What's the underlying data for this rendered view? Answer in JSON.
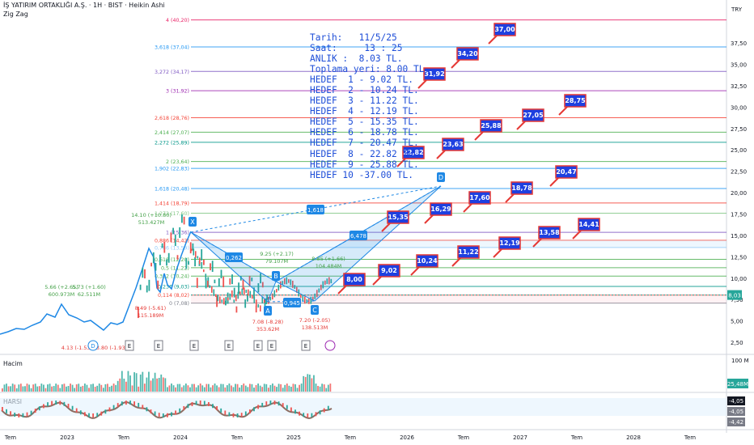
{
  "header": {
    "title": "İŞ YATIRIM ORTAKLIĞI A.Ş. · 1H · BIST · Heikin Ashi",
    "indicator": "Zig Zag"
  },
  "info_lines": [
    "Tarih:   11/5/25",
    "Saat:     13 : 25",
    "ANLIK :  8.03 TL.",
    "Toplama yeri: 8.00 TL.",
    "HEDEF  1 - 9.02 TL.",
    "HEDEF  2 - 10.24 TL.",
    "HEDEF  3 - 11.22 TL.",
    "HEDEF  4 - 12.19 TL.",
    "HEDEF  5 - 15.35 TL.",
    "HEDEF  6 - 18.78 TL.",
    "HEDEF  7 - 20.47 TL.",
    "HEDEF  8 - 22.82 TL.",
    "HEDEF  9 - 25.88 TL.",
    "HEDEF 10 -37.00 TL."
  ],
  "chart_data": {
    "type": "line",
    "currency": "TRY",
    "y_range": [
      2.3,
      41.8
    ],
    "y_ticks": [
      "37,50",
      "35,00",
      "32,50",
      "30,00",
      "27,50",
      "25,00",
      "22,50",
      "20,00",
      "17,50",
      "15,00",
      "12,50",
      "10,00",
      "7,50",
      "5,00",
      "2,50"
    ],
    "y_tick_values": [
      37.5,
      35,
      32.5,
      30,
      27.5,
      25,
      22.5,
      20,
      17.5,
      15,
      12.5,
      10,
      7.5,
      5,
      2.5
    ],
    "last_price_label": "8,03",
    "last_price": 8.03,
    "x_ticks": [
      "Tem",
      "2023",
      "Tem",
      "2024",
      "Tem",
      "2025",
      "Tem",
      "2026",
      "Tem",
      "2027",
      "Tem",
      "2028",
      "Tem"
    ],
    "fib_levels": [
      {
        "label": "4 (40,20)",
        "value": 40.2,
        "color": "#e91e63"
      },
      {
        "label": "3,618 (37,04)",
        "value": 37.04,
        "color": "#2196f3"
      },
      {
        "label": "3,272 (34,17)",
        "value": 34.17,
        "color": "#7e57c2"
      },
      {
        "label": "3 (31,92)",
        "value": 31.92,
        "color": "#9c27b0"
      },
      {
        "label": "2,618 (28,76)",
        "value": 28.76,
        "color": "#f44336"
      },
      {
        "label": "2,414 (27,07)",
        "value": 27.07,
        "color": "#4caf50"
      },
      {
        "label": "2,272 (25,89)",
        "value": 25.89,
        "color": "#009688"
      },
      {
        "label": "2 (23,64)",
        "value": 23.64,
        "color": "#4caf50"
      },
      {
        "label": "1,902 (22,83)",
        "value": 22.83,
        "color": "#2196f3"
      },
      {
        "label": "1,618 (20,48)",
        "value": 20.48,
        "color": "#2196f3"
      },
      {
        "label": "1,414 (18,79)",
        "value": 18.79,
        "color": "#f44336"
      },
      {
        "label": "1,272 (17,60)",
        "value": 17.6,
        "color": "#81c784"
      },
      {
        "label": "1 (15,36)",
        "value": 15.36,
        "color": "#7e57c2"
      },
      {
        "label": "0,886 (14,42)",
        "value": 14.42,
        "color": "#f44336"
      },
      {
        "label": "0,786 (13,59)",
        "value": 13.59,
        "color": "#90caf9"
      },
      {
        "label": "0,618 (12,20)",
        "value": 12.2,
        "color": "#4caf50"
      },
      {
        "label": "0,5 (11,22)",
        "value": 11.22,
        "color": "#4caf50"
      },
      {
        "label": "0,382 (10,24)",
        "value": 10.24,
        "color": "#4caf50"
      },
      {
        "label": "0,236 (9,03)",
        "value": 9.03,
        "color": "#009688"
      },
      {
        "label": "0,114 (8,02)",
        "value": 8.02,
        "color": "#f44336"
      },
      {
        "label": "0 (7,08)",
        "value": 7.08,
        "color": "#787b86"
      }
    ],
    "zigzag_labels": [
      {
        "text": "5.66 (+2.65)",
        "sub": "600.973M",
        "color": "#43a047"
      },
      {
        "text": "5.73 (+1.60)",
        "sub": "62.511M",
        "color": "#43a047"
      },
      {
        "text": "14.10 (+10.80)",
        "sub": "513.427M",
        "color": "#43a047"
      },
      {
        "text": "9.25 (+2.17)",
        "sub": "79.107M",
        "color": "#43a047"
      },
      {
        "text": "8.85 (+1.66)",
        "sub": "104.484M",
        "color": "#43a047"
      },
      {
        "text": "4.13 (-1.53)",
        "sub": "",
        "color": "#e53935"
      },
      {
        "text": "3.80 (-1.93)",
        "sub": "",
        "color": "#e53935"
      },
      {
        "text": "8.49 (-5.61)",
        "sub": "115.189M",
        "color": "#e53935"
      },
      {
        "text": "7.08 (-8.28)",
        "sub": "353.62M",
        "color": "#e53935"
      },
      {
        "text": "7.20 (-2.05)",
        "sub": "138.513M",
        "color": "#e53935"
      }
    ],
    "pattern_points": [
      "X",
      "A",
      "B",
      "C",
      "D"
    ],
    "pattern_ratios": [
      "0,262",
      "0,945",
      "6,478",
      "1,618"
    ],
    "targets": [
      "8,00",
      "9,02",
      "10,24",
      "11,22",
      "12,19",
      "13,58",
      "14,41",
      "15,35",
      "16,29",
      "17,60",
      "18,78",
      "20,47",
      "22,82",
      "23,63",
      "25,88",
      "27,05",
      "28,75",
      "31,92",
      "34,20",
      "37,00"
    ],
    "earnings_markers": [
      "E",
      "E",
      "E",
      "E",
      "E",
      "E",
      "E"
    ],
    "dividend_marker": "D",
    "volume_panel": {
      "label": "Hacim",
      "scale": "100 M",
      "value": "25,48M"
    },
    "harsi_panel": {
      "label": "HARSI",
      "values": [
        "-4,05",
        "-4,05",
        "-4,42"
      ]
    }
  }
}
